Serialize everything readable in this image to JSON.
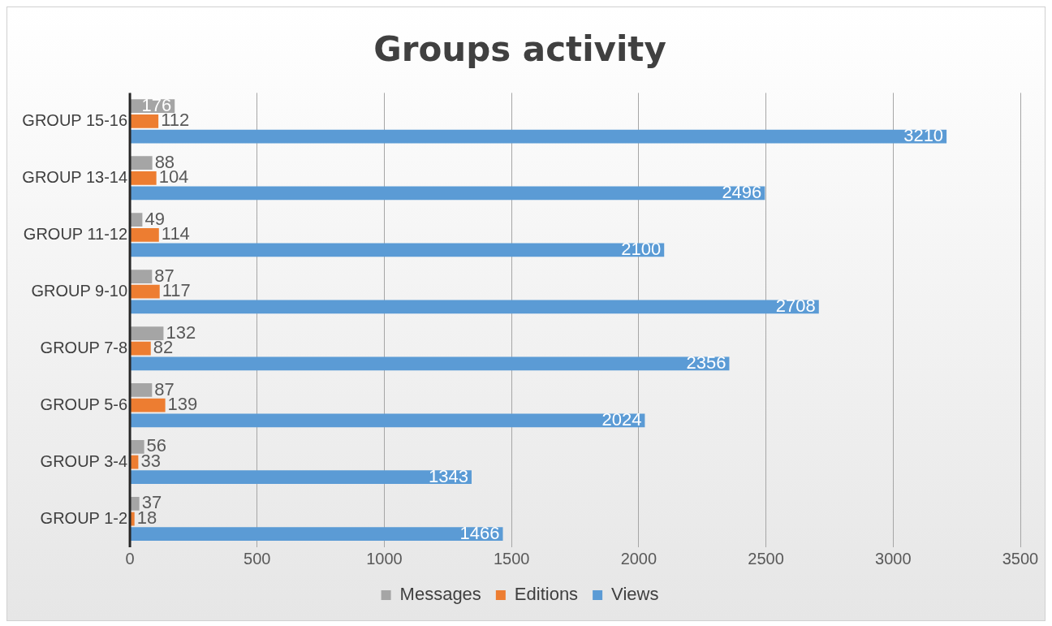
{
  "chart_data": {
    "type": "bar",
    "orientation": "horizontal",
    "title": "Groups activity",
    "categories": [
      "GROUP 15-16",
      "GROUP 13-14",
      "GROUP 11-12",
      "GROUP 9-10",
      "GROUP 7-8",
      "GROUP 5-6",
      "GROUP 3-4",
      "GROUP 1-2"
    ],
    "series": [
      {
        "name": "Messages",
        "color": "#a5a5a5",
        "values": [
          176,
          88,
          49,
          87,
          132,
          87,
          56,
          37
        ]
      },
      {
        "name": "Editions",
        "color": "#ed7d31",
        "values": [
          112,
          104,
          114,
          117,
          82,
          139,
          33,
          18
        ]
      },
      {
        "name": "Views",
        "color": "#5b9bd5",
        "values": [
          3210,
          2496,
          2100,
          2708,
          2356,
          2024,
          1343,
          1466
        ]
      }
    ],
    "xlim": [
      0,
      3500
    ],
    "xticks": [
      0,
      500,
      1000,
      1500,
      2000,
      2500,
      3000,
      3500
    ],
    "grid": "x",
    "legend": "bottom",
    "data_labels": true
  }
}
